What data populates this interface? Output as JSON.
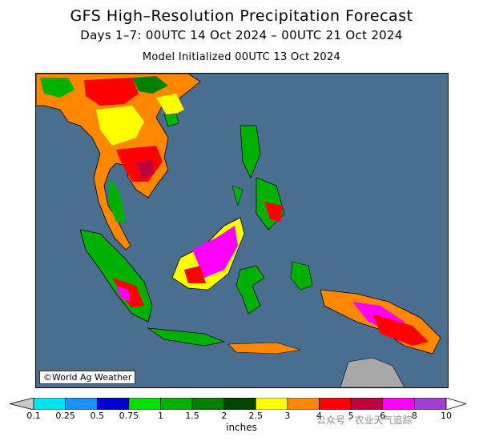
{
  "title": "GFS High–Resolution Precipitation Forecast",
  "subtitle": "Days 1–7: 00UTC 14 Oct 2024 – 00UTC 21 Oct 2024",
  "init": "Model Initialized 00UTC 13 Oct 2024",
  "copyright": "©World Ag Weather",
  "units": "inches",
  "watermark": "公众号 · 农业天气追踪",
  "colors": {
    "ocean": "#4a6e8e",
    "land": "#a8a8a8",
    "border": "#000000"
  },
  "legend": {
    "ticks": [
      "0.1",
      "0.25",
      "0.5",
      "0.75",
      "1",
      "1.5",
      "2",
      "2.5",
      "3",
      "4",
      "5",
      "6",
      "8",
      "10"
    ],
    "colors": [
      "#00e4ee",
      "#1e90ff",
      "#0000d0",
      "#00e000",
      "#00b000",
      "#008000",
      "#004400",
      "#ffff00",
      "#ff8800",
      "#ff0000",
      "#c00040",
      "#ff00ff",
      "#a040d0"
    ],
    "under_color": "#c8c8c8",
    "over_color": "#ffffff"
  }
}
